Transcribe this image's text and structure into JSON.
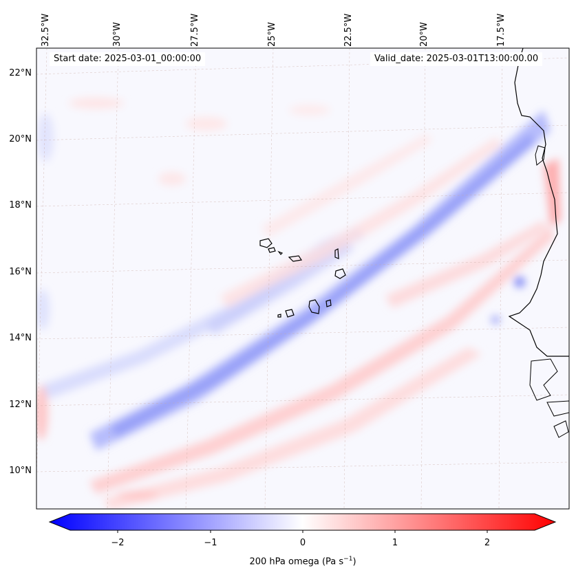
{
  "map": {
    "start_date": "Start date: 2025-03-01_00:00:00",
    "valid_date": "Valid_date: 2025-03-01T13:00:00.00",
    "lon_labels": [
      "32.5°W",
      "30°W",
      "27.5°W",
      "25°W",
      "22.5°W",
      "20°W",
      "17.5°W"
    ],
    "lat_labels": [
      "22°N",
      "20°N",
      "18°N",
      "16°N",
      "14°N",
      "12°N",
      "10°N"
    ],
    "field": "200 hPa omega",
    "region": "Cabo Verde / West African coast"
  },
  "colorbar": {
    "ticks": [
      "−2",
      "−1",
      "0",
      "1",
      "2"
    ],
    "label_main": "200 hPa omega (Pa s",
    "label_exp": "−1",
    "label_end": ")",
    "colors": {
      "min": "#0000ff",
      "mid": "#ffffff",
      "max": "#ff0000"
    }
  }
}
